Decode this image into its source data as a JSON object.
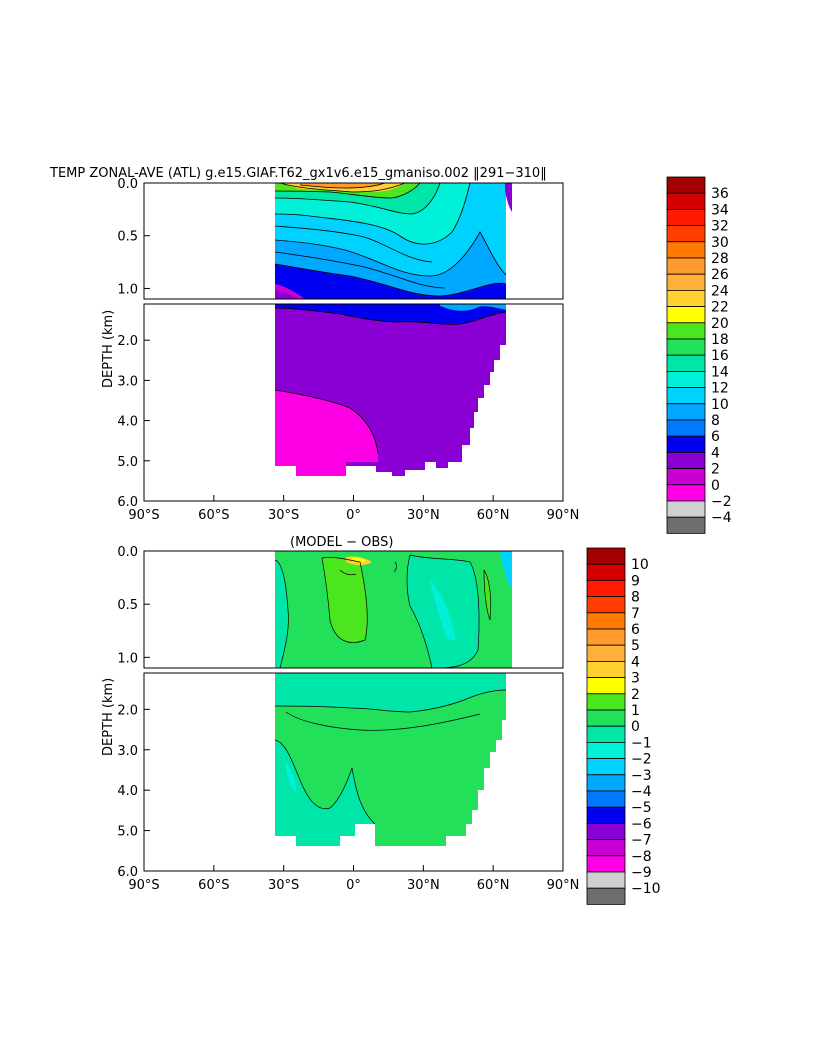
{
  "chart_data": [
    {
      "type": "heatmap",
      "title": "TEMP ZONAL-AVE (ATL) g.e15.GIAF.T62_gx1v6.e15_gmaniso.002 ‖291−310‖",
      "subtitle": "",
      "ylabel": "DEPTH (km)",
      "xlabel": "",
      "x_ticks": [
        "90°S",
        "60°S",
        "30°S",
        "0°",
        "30°N",
        "60°N",
        "90°N"
      ],
      "y_ticks_top": [
        "0.0",
        "0.5",
        "1.0"
      ],
      "y_ticks_bottom": [
        "2.0",
        "3.0",
        "4.0",
        "5.0",
        "6.0"
      ],
      "xlim": [
        -90,
        90
      ],
      "ylim_upper_km": [
        0,
        1.1
      ],
      "ylim_lower_km": [
        1.1,
        6.0
      ],
      "data_extent_lat": [
        -34,
        66
      ],
      "colorbar_levels": [
        "36",
        "34",
        "32",
        "30",
        "28",
        "26",
        "24",
        "22",
        "20",
        "18",
        "16",
        "14",
        "12",
        "10",
        "8",
        "6",
        "4",
        "2",
        "0",
        "−2",
        "−4"
      ],
      "colorbar_colors": [
        "#a30000",
        "#d40000",
        "#ff1a00",
        "#ff3d00",
        "#ff7a00",
        "#ff9a2e",
        "#ffb03a",
        "#ffd030",
        "#ffff00",
        "#4be61e",
        "#22e05a",
        "#00e6a8",
        "#00f0d8",
        "#00d2ff",
        "#00a8ff",
        "#0078ff",
        "#0000f0",
        "#8a00d4",
        "#c800d4",
        "#ff00e6",
        "#d0d0d0",
        "#6e6e6e"
      ]
    },
    {
      "type": "heatmap",
      "title": "(MODEL − OBS)",
      "ylabel": "DEPTH (km)",
      "xlabel": "",
      "x_ticks": [
        "90°S",
        "60°S",
        "30°S",
        "0°",
        "30°N",
        "60°N",
        "90°N"
      ],
      "y_ticks_top": [
        "0.0",
        "0.5",
        "1.0"
      ],
      "y_ticks_bottom": [
        "2.0",
        "3.0",
        "4.0",
        "5.0",
        "6.0"
      ],
      "xlim": [
        -90,
        90
      ],
      "ylim_upper_km": [
        0,
        1.1
      ],
      "ylim_lower_km": [
        1.1,
        6.0
      ],
      "data_extent_lat": [
        -34,
        66
      ],
      "colorbar_levels": [
        "10",
        "9",
        "8",
        "7",
        "6",
        "5",
        "4",
        "3",
        "2",
        "1",
        "0",
        "−1",
        "−2",
        "−3",
        "−4",
        "−5",
        "−6",
        "−7",
        "−8",
        "−9",
        "−10"
      ],
      "colorbar_colors": [
        "#a30000",
        "#d40000",
        "#ff1a00",
        "#ff3d00",
        "#ff7a00",
        "#ff9a2e",
        "#ffb03a",
        "#ffd030",
        "#ffff00",
        "#4be61e",
        "#22e05a",
        "#00e6a8",
        "#00f0d8",
        "#00d2ff",
        "#00a8ff",
        "#0078ff",
        "#0000f0",
        "#8a00d4",
        "#c800d4",
        "#ff00e6",
        "#d0d0d0",
        "#6e6e6e"
      ]
    }
  ]
}
